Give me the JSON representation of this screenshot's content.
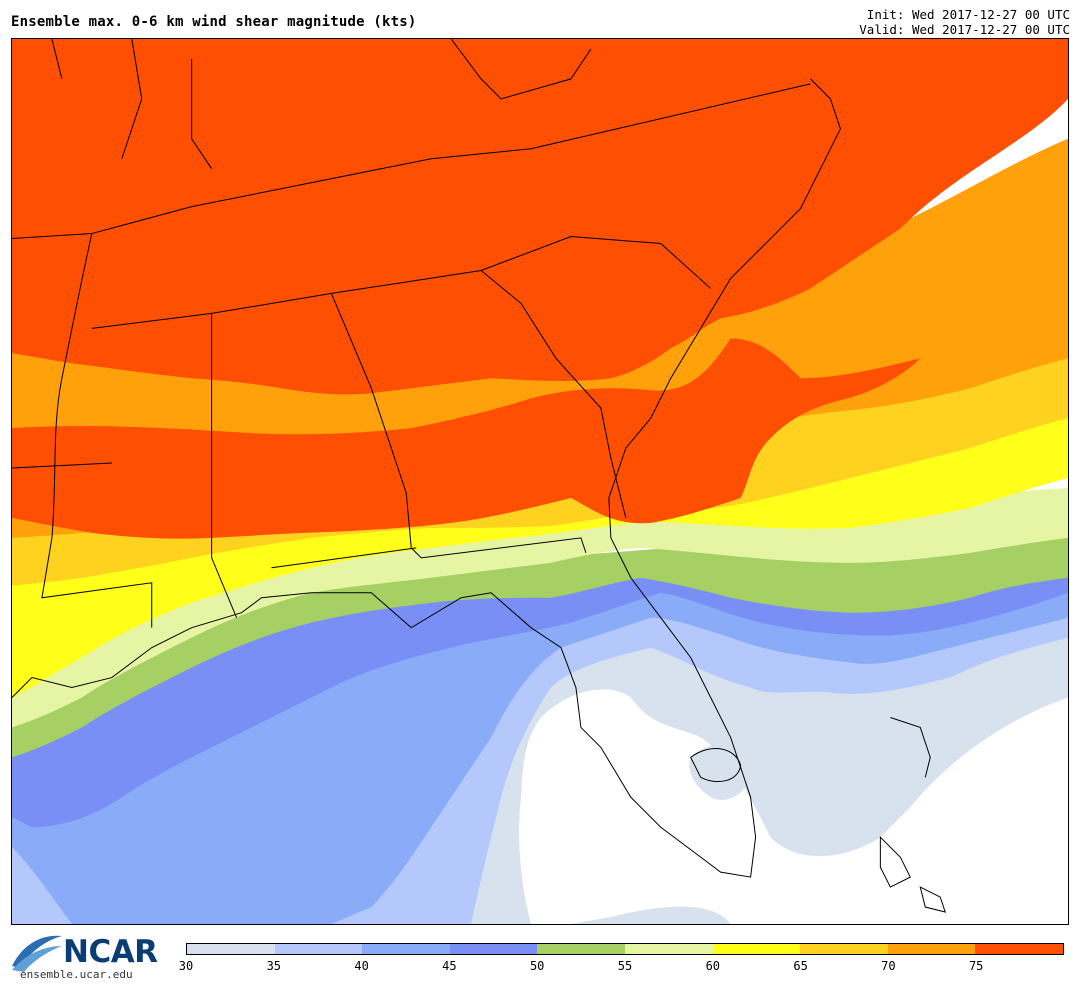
{
  "header": {
    "title": "Ensemble max. 0-6 km wind shear magnitude (kts)",
    "init": "Init: Wed 2017-12-27 00 UTC",
    "valid": "Valid: Wed 2017-12-27 00 UTC"
  },
  "branding": {
    "logo_text": "NCAR",
    "website": "ensemble.ucar.edu"
  },
  "colorbar": {
    "colors": [
      "#d8e2ee",
      "#b5c8fb",
      "#8aacf8",
      "#7a8ff5",
      "#a6cf64",
      "#e6f5a4",
      "#ffff1a",
      "#ffd21f",
      "#ffa10b",
      "#ff4f03"
    ],
    "labels": [
      "30",
      "35",
      "40",
      "45",
      "50",
      "55",
      "60",
      "65",
      "70",
      "75"
    ]
  },
  "map": {
    "region": "Southeastern United States",
    "field_colors": {
      "lt30": "#ffffff",
      "c30": "#d8e2ee",
      "c35": "#b5c8fb",
      "c40": "#8aacf8",
      "c45": "#7a8ff5",
      "c50": "#a6cf64",
      "c55": "#e6f5a4",
      "c60": "#ffff1a",
      "c65": "#ffd21f",
      "c70": "#ffa10b",
      "c75": "#ff4f03"
    }
  }
}
